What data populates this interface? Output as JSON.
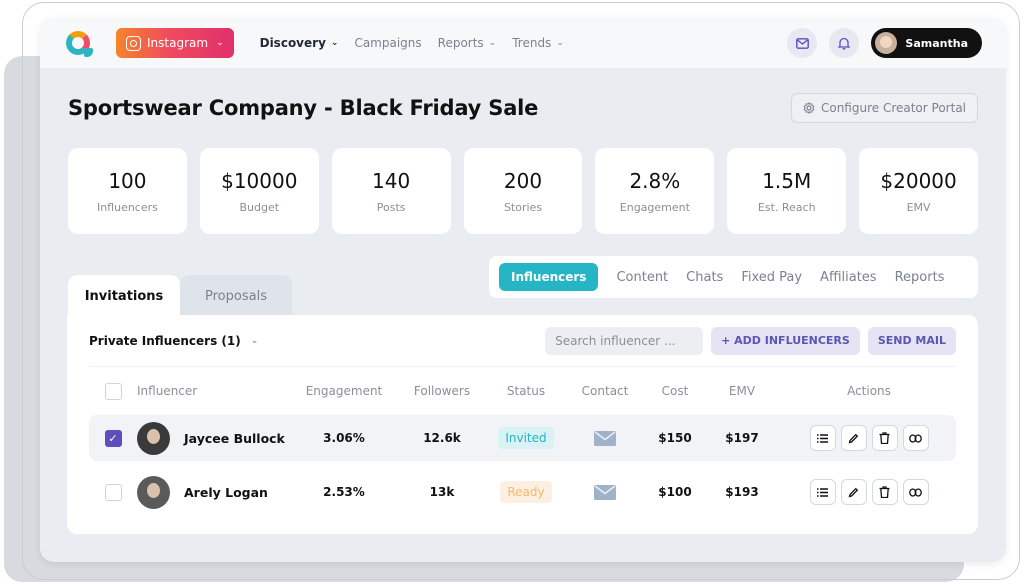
{
  "nav": {
    "platform": "Instagram",
    "links": [
      {
        "label": "Discovery",
        "active": true
      },
      {
        "label": "Campaigns",
        "active": false
      },
      {
        "label": "Reports",
        "active": false
      },
      {
        "label": "Trends",
        "active": false
      }
    ],
    "user_name": "Samantha"
  },
  "header": {
    "title": "Sportswear Company - Black Friday Sale",
    "config_button": "Configure Creator Portal"
  },
  "stats": [
    {
      "value": "100",
      "label": "Influencers"
    },
    {
      "value": "$10000",
      "label": "Budget"
    },
    {
      "value": "140",
      "label": "Posts"
    },
    {
      "value": "200",
      "label": "Stories"
    },
    {
      "value": "2.8%",
      "label": "Engagement"
    },
    {
      "value": "1.5M",
      "label": "Est. Reach"
    },
    {
      "value": "$20000",
      "label": "EMV"
    }
  ],
  "tabs": [
    "Invitations",
    "Proposals"
  ],
  "subnav": [
    "Influencers",
    "Content",
    "Chats",
    "Fixed Pay",
    "Affiliates",
    "Reports"
  ],
  "panel": {
    "filter_label": "Private Influencers (1)",
    "search_placeholder": "Search influencer ...",
    "add_button": "+ ADD INFLUENCERS",
    "mail_button": "SEND MAIL"
  },
  "table": {
    "headers": [
      "Influencer",
      "Engagement",
      "Followers",
      "Status",
      "Contact",
      "Cost",
      "EMV",
      "Actions"
    ],
    "rows": [
      {
        "name": "Jaycee Bullock",
        "engagement": "3.06%",
        "followers": "12.6k",
        "status": "Invited",
        "cost": "$150",
        "emv": "$197",
        "selected": true
      },
      {
        "name": "Arely Logan",
        "engagement": "2.53%",
        "followers": "13k",
        "status": "Ready",
        "cost": "$100",
        "emv": "$193",
        "selected": false
      }
    ]
  },
  "colors": {
    "accent": "#26b5c5",
    "purple": "#5b4fbe",
    "ready": "#f4b86b"
  }
}
